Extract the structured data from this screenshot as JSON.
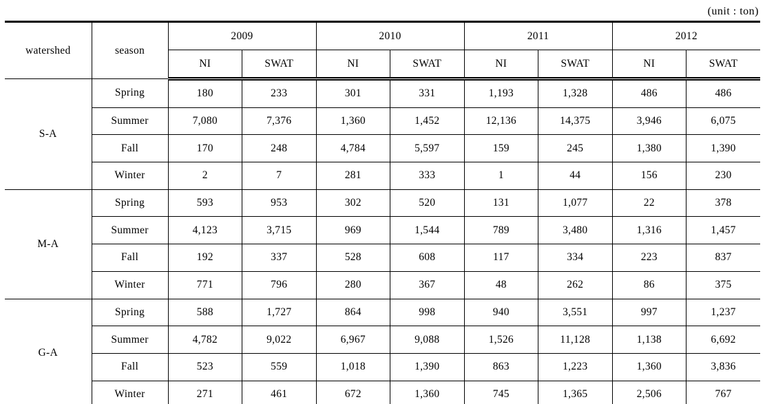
{
  "unit_label": "(unit : ton)",
  "table": {
    "headers": {
      "watershed": "watershed",
      "season": "season",
      "years": [
        "2009",
        "2010",
        "2011",
        "2012"
      ],
      "subcolumns": [
        "NI",
        "SWAT"
      ]
    },
    "groups": [
      {
        "watershed": "S-A",
        "rows": [
          {
            "season": "Spring",
            "values": [
              "180",
              "233",
              "301",
              "331",
              "1,193",
              "1,328",
              "486",
              "486"
            ]
          },
          {
            "season": "Summer",
            "values": [
              "7,080",
              "7,376",
              "1,360",
              "1,452",
              "12,136",
              "14,375",
              "3,946",
              "6,075"
            ]
          },
          {
            "season": "Fall",
            "values": [
              "170",
              "248",
              "4,784",
              "5,597",
              "159",
              "245",
              "1,380",
              "1,390"
            ]
          },
          {
            "season": "Winter",
            "values": [
              "2",
              "7",
              "281",
              "333",
              "1",
              "44",
              "156",
              "230"
            ]
          }
        ]
      },
      {
        "watershed": "M-A",
        "rows": [
          {
            "season": "Spring",
            "values": [
              "593",
              "953",
              "302",
              "520",
              "131",
              "1,077",
              "22",
              "378"
            ]
          },
          {
            "season": "Summer",
            "values": [
              "4,123",
              "3,715",
              "969",
              "1,544",
              "789",
              "3,480",
              "1,316",
              "1,457"
            ]
          },
          {
            "season": "Fall",
            "values": [
              "192",
              "337",
              "528",
              "608",
              "117",
              "334",
              "223",
              "837"
            ]
          },
          {
            "season": "Winter",
            "values": [
              "771",
              "796",
              "280",
              "367",
              "48",
              "262",
              "86",
              "375"
            ]
          }
        ]
      },
      {
        "watershed": "G-A",
        "rows": [
          {
            "season": "Spring",
            "values": [
              "588",
              "1,727",
              "864",
              "998",
              "940",
              "3,551",
              "997",
              "1,237"
            ]
          },
          {
            "season": "Summer",
            "values": [
              "4,782",
              "9,022",
              "6,967",
              "9,088",
              "1,526",
              "11,128",
              "1,138",
              "6,692"
            ]
          },
          {
            "season": "Fall",
            "values": [
              "523",
              "559",
              "1,018",
              "1,390",
              "863",
              "1,223",
              "1,360",
              "3,836"
            ]
          },
          {
            "season": "Winter",
            "values": [
              "271",
              "461",
              "672",
              "1,360",
              "745",
              "1,365",
              "2,506",
              "767"
            ]
          }
        ]
      }
    ]
  }
}
